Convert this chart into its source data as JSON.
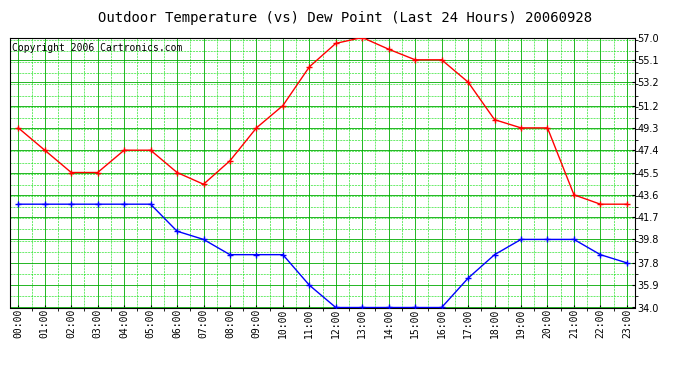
{
  "title": "Outdoor Temperature (vs) Dew Point (Last 24 Hours) 20060928",
  "copyright": "Copyright 2006 Cartronics.com",
  "hours": [
    "00:00",
    "01:00",
    "02:00",
    "03:00",
    "04:00",
    "05:00",
    "06:00",
    "07:00",
    "08:00",
    "09:00",
    "10:00",
    "11:00",
    "12:00",
    "13:00",
    "14:00",
    "15:00",
    "16:00",
    "17:00",
    "18:00",
    "19:00",
    "20:00",
    "21:00",
    "22:00",
    "23:00"
  ],
  "temp": [
    49.3,
    47.4,
    45.5,
    45.5,
    47.4,
    47.4,
    45.5,
    44.5,
    46.5,
    49.3,
    51.2,
    54.5,
    56.5,
    57.0,
    56.0,
    55.1,
    55.1,
    53.2,
    50.0,
    49.3,
    49.3,
    43.6,
    42.8,
    42.8
  ],
  "dew": [
    42.8,
    42.8,
    42.8,
    42.8,
    42.8,
    42.8,
    40.5,
    39.8,
    38.5,
    38.5,
    38.5,
    35.9,
    34.0,
    34.0,
    34.0,
    34.0,
    34.0,
    36.5,
    38.5,
    39.8,
    39.8,
    39.8,
    38.5,
    37.8
  ],
  "temp_color": "#ff0000",
  "dew_color": "#0000ff",
  "bg_color": "#ffffff",
  "plot_bg": "#ffffff",
  "grid_color_major": "#00aa00",
  "grid_color_minor": "#00dd00",
  "ylim_min": 34.0,
  "ylim_max": 57.0,
  "yticks": [
    34.0,
    35.9,
    37.8,
    39.8,
    41.7,
    43.6,
    45.5,
    47.4,
    49.3,
    51.2,
    53.2,
    55.1,
    57.0
  ],
  "title_fontsize": 10,
  "copyright_fontsize": 7
}
